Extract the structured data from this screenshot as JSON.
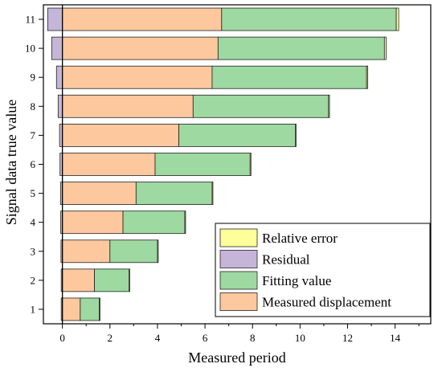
{
  "chart_data": {
    "type": "bar",
    "orientation": "horizontal",
    "stacked": true,
    "xlabel": "Measured period",
    "ylabel": "Signal data true value",
    "xlim": [
      -0.8,
      15.5
    ],
    "x_ticks": [
      "0",
      "2",
      "4",
      "6",
      "8",
      "10",
      "12",
      "14"
    ],
    "categories": [
      "1",
      "2",
      "3",
      "4",
      "5",
      "6",
      "7",
      "8",
      "9",
      "10",
      "11"
    ],
    "series": [
      {
        "name": "Relative error",
        "color": "#ffff99",
        "values": [
          0.01,
          0.01,
          0.01,
          0.01,
          0.01,
          0.02,
          0.03,
          0.04,
          0.05,
          0.07,
          0.1
        ]
      },
      {
        "name": "Residual",
        "color": "#c5b6d9",
        "values": [
          0.05,
          0.05,
          0.06,
          0.07,
          0.08,
          0.1,
          0.12,
          0.18,
          0.25,
          0.45,
          0.62
        ]
      },
      {
        "name": "Fitting value",
        "color": "#9dd9a0",
        "values": [
          0.8,
          1.45,
          2.0,
          2.6,
          3.2,
          4.0,
          4.9,
          5.7,
          6.5,
          7.0,
          7.35
        ]
      },
      {
        "name": "Measured displacement",
        "color": "#fdc89e",
        "values": [
          0.75,
          1.35,
          2.0,
          2.55,
          3.1,
          3.9,
          4.9,
          5.5,
          6.3,
          6.55,
          6.7
        ]
      }
    ],
    "legend_position": "bottom-right",
    "grid": false
  }
}
